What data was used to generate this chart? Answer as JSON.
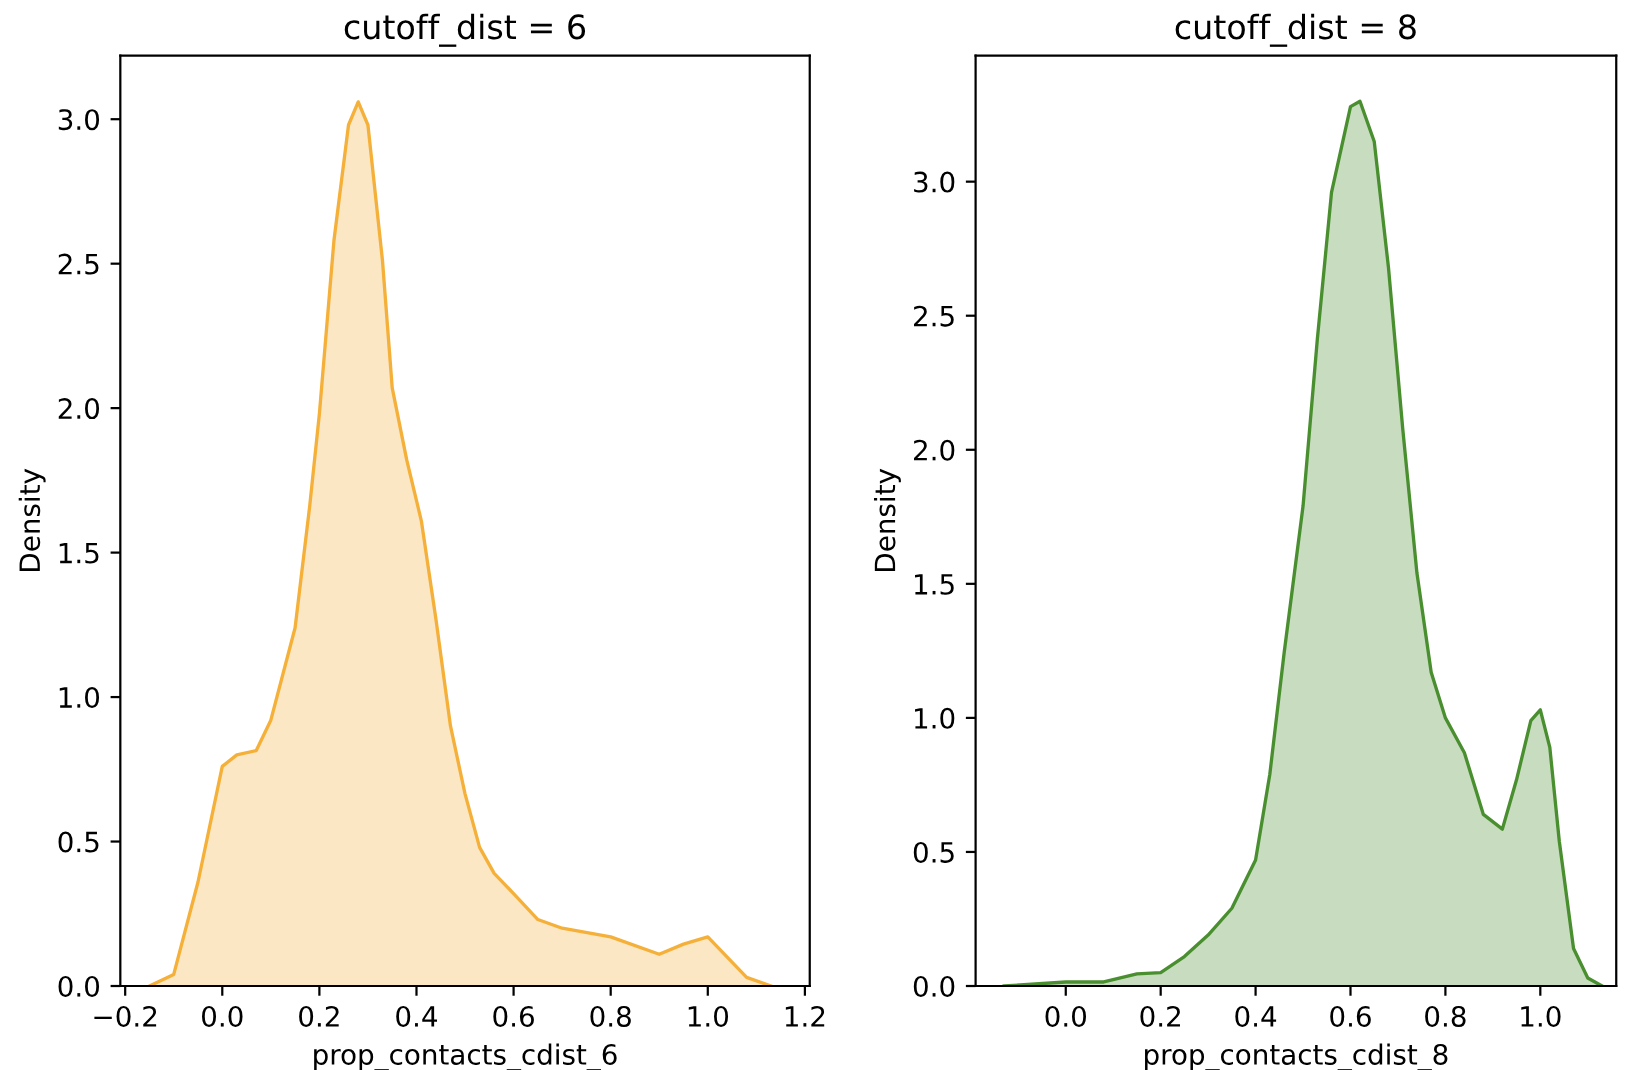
{
  "chart_data": [
    {
      "type": "area",
      "title": "cutoff_dist = 6",
      "xlabel": "prop_contacts_cdist_6",
      "ylabel": "Density",
      "xlim": [
        -0.21,
        1.21
      ],
      "xticks": [
        {
          "value": -0.2,
          "label": "−0.2"
        },
        {
          "value": 0.0,
          "label": "0.0"
        },
        {
          "value": 0.2,
          "label": "0.2"
        },
        {
          "value": 0.4,
          "label": "0.4"
        },
        {
          "value": 0.6,
          "label": "0.6"
        },
        {
          "value": 0.8,
          "label": "0.8"
        },
        {
          "value": 1.0,
          "label": "1.0"
        },
        {
          "value": 1.2,
          "label": "1.2"
        }
      ],
      "ylim": [
        0,
        3.22
      ],
      "yticks": [
        {
          "value": 0,
          "label": "0.0"
        },
        {
          "value": 0.5,
          "label": "0.5"
        },
        {
          "value": 1.0,
          "label": "1.0"
        },
        {
          "value": 1.5,
          "label": "1.5"
        },
        {
          "value": 2.0,
          "label": "2.0"
        },
        {
          "value": 2.5,
          "label": "2.5"
        },
        {
          "value": 3.0,
          "label": "3.0"
        }
      ],
      "grid": false,
      "legend": false,
      "series": [
        {
          "color": "#f5b03a",
          "x": [
            -0.15,
            -0.1,
            -0.05,
            0.0,
            0.03,
            0.07,
            0.1,
            0.15,
            0.18,
            0.2,
            0.23,
            0.26,
            0.28,
            0.3,
            0.33,
            0.35,
            0.38,
            0.41,
            0.44,
            0.47,
            0.5,
            0.53,
            0.56,
            0.6,
            0.65,
            0.7,
            0.8,
            0.9,
            0.95,
            1.0,
            1.04,
            1.08,
            1.13
          ],
          "values": [
            0,
            0.04,
            0.36,
            0.76,
            0.8,
            0.815,
            0.92,
            1.24,
            1.66,
            1.98,
            2.58,
            2.98,
            3.06,
            2.98,
            2.51,
            2.07,
            1.82,
            1.61,
            1.27,
            0.9,
            0.665,
            0.48,
            0.39,
            0.32,
            0.23,
            0.2,
            0.17,
            0.11,
            0.145,
            0.17,
            0.1,
            0.03,
            0
          ]
        }
      ]
    },
    {
      "type": "area",
      "title": "cutoff_dist = 8",
      "xlabel": "prop_contacts_cdist_8",
      "ylabel": "Density",
      "xlim": [
        -0.19,
        1.16
      ],
      "xticks": [
        {
          "value": 0.0,
          "label": "0.0"
        },
        {
          "value": 0.2,
          "label": "0.2"
        },
        {
          "value": 0.4,
          "label": "0.4"
        },
        {
          "value": 0.6,
          "label": "0.6"
        },
        {
          "value": 0.8,
          "label": "0.8"
        },
        {
          "value": 1.0,
          "label": "1.0"
        }
      ],
      "ylim": [
        0,
        3.47
      ],
      "yticks": [
        {
          "value": 0,
          "label": "0.0"
        },
        {
          "value": 0.5,
          "label": "0.5"
        },
        {
          "value": 1.0,
          "label": "1.0"
        },
        {
          "value": 1.5,
          "label": "1.5"
        },
        {
          "value": 2.0,
          "label": "2.0"
        },
        {
          "value": 2.5,
          "label": "2.5"
        },
        {
          "value": 3.0,
          "label": "3.0"
        }
      ],
      "grid": false,
      "legend": false,
      "series": [
        {
          "color": "#4a8f2f",
          "x": [
            -0.13,
            0.0,
            0.08,
            0.15,
            0.2,
            0.25,
            0.3,
            0.35,
            0.4,
            0.43,
            0.46,
            0.5,
            0.53,
            0.56,
            0.6,
            0.62,
            0.65,
            0.68,
            0.71,
            0.74,
            0.77,
            0.8,
            0.84,
            0.88,
            0.92,
            0.95,
            0.98,
            1.0,
            1.02,
            1.04,
            1.07,
            1.1,
            1.13
          ],
          "values": [
            0,
            0.015,
            0.015,
            0.045,
            0.05,
            0.11,
            0.19,
            0.29,
            0.47,
            0.79,
            1.24,
            1.79,
            2.41,
            2.96,
            3.28,
            3.3,
            3.15,
            2.68,
            2.08,
            1.54,
            1.17,
            1.0,
            0.87,
            0.64,
            0.585,
            0.77,
            0.99,
            1.03,
            0.89,
            0.54,
            0.14,
            0.03,
            0
          ]
        }
      ]
    }
  ]
}
